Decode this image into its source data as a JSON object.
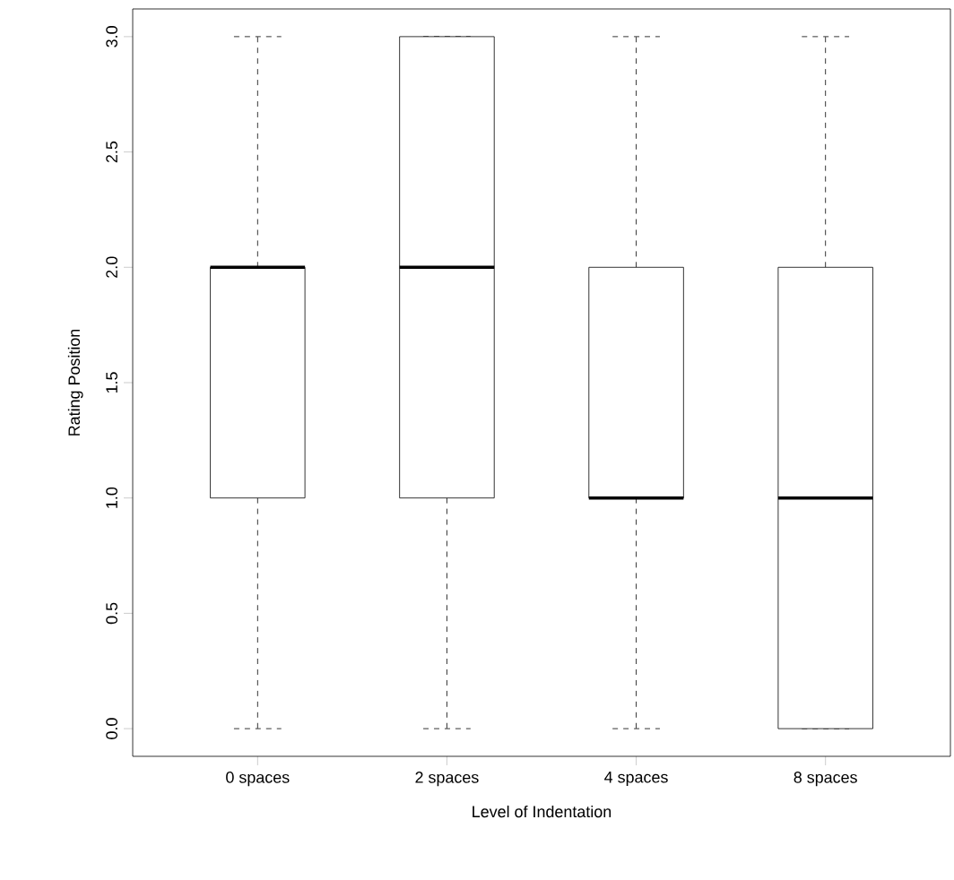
{
  "chart_data": {
    "type": "box",
    "xlabel": "Level of Indentation",
    "ylabel": "Rating Position",
    "categories": [
      "0 spaces",
      "2 spaces",
      "4 spaces",
      "8 spaces"
    ],
    "boxes": [
      {
        "low": 0,
        "q1": 1,
        "median": 2,
        "q3": 2,
        "high": 3
      },
      {
        "low": 0,
        "q1": 1,
        "median": 2,
        "q3": 3,
        "high": 3
      },
      {
        "low": 0,
        "q1": 1,
        "median": 1,
        "q3": 2,
        "high": 3
      },
      {
        "low": 0,
        "q1": 0,
        "median": 1,
        "q3": 2,
        "high": 3
      }
    ],
    "ylim": [
      -0.12,
      3.12
    ],
    "yticks": [
      {
        "value": 0,
        "label": "0.0"
      },
      {
        "value": 0.5,
        "label": "0.5"
      },
      {
        "value": 1,
        "label": "1.0"
      },
      {
        "value": 1.5,
        "label": "1.5"
      },
      {
        "value": 2,
        "label": "2.0"
      },
      {
        "value": 2.5,
        "label": "2.5"
      },
      {
        "value": 3,
        "label": "3.0"
      }
    ]
  }
}
